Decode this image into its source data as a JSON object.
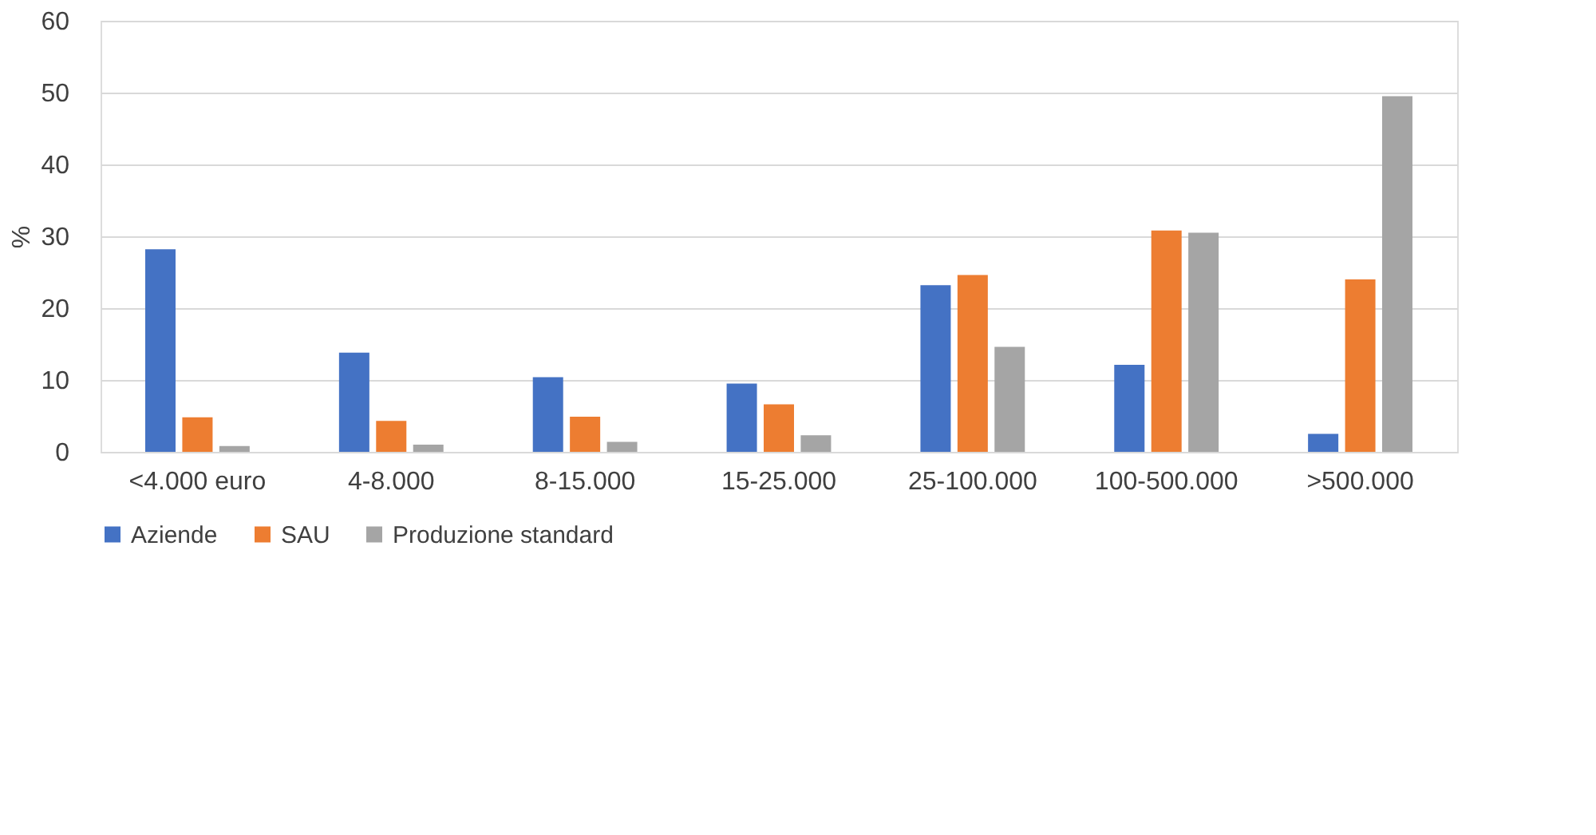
{
  "chart_data": {
    "type": "bar",
    "ylabel": "%",
    "categories": [
      "<4.000 euro",
      "4-8.000",
      "8-15.000",
      "15-25.000",
      "25-100.000",
      "100-500.000",
      ">500.000"
    ],
    "series": [
      {
        "name": "Aziende",
        "color": "#4472c4",
        "values": [
          28.2,
          13.8,
          10.4,
          9.5,
          23.2,
          12.1,
          2.5
        ]
      },
      {
        "name": "SAU",
        "color": "#ed7d31",
        "values": [
          4.8,
          4.3,
          4.9,
          6.6,
          24.6,
          30.8,
          24.0
        ]
      },
      {
        "name": "Produzione standard",
        "color": "#a5a5a5",
        "values": [
          0.8,
          1.0,
          1.4,
          2.3,
          14.6,
          30.5,
          49.5
        ]
      }
    ],
    "ylim": [
      0,
      60
    ],
    "yticks": [
      0,
      10,
      20,
      30,
      40,
      50,
      60
    ],
    "grid": "y",
    "legend": "bottom"
  }
}
